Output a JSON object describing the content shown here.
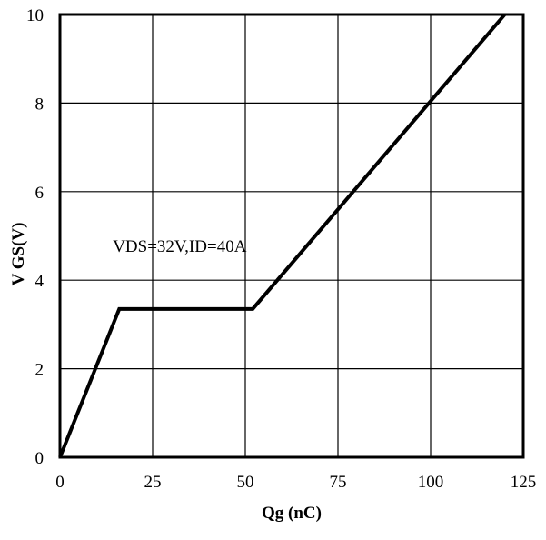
{
  "chart_data": {
    "type": "line",
    "title": "",
    "xlabel": "Qg (nC)",
    "ylabel": "V GS(V)",
    "xlim": [
      0,
      125
    ],
    "ylim": [
      0,
      10
    ],
    "xticks": [
      0,
      25,
      50,
      75,
      100,
      125
    ],
    "yticks": [
      0,
      2,
      4,
      6,
      8,
      10
    ],
    "grid": true,
    "legend": "none",
    "series": [
      {
        "x": [
          0,
          16,
          52,
          120
        ],
        "y": [
          0,
          3.35,
          3.35,
          10
        ],
        "color": "#000000"
      }
    ],
    "annotations": [
      {
        "text": "VDS=32V,ID=40A",
        "x": 15,
        "y": 4.5
      }
    ]
  }
}
